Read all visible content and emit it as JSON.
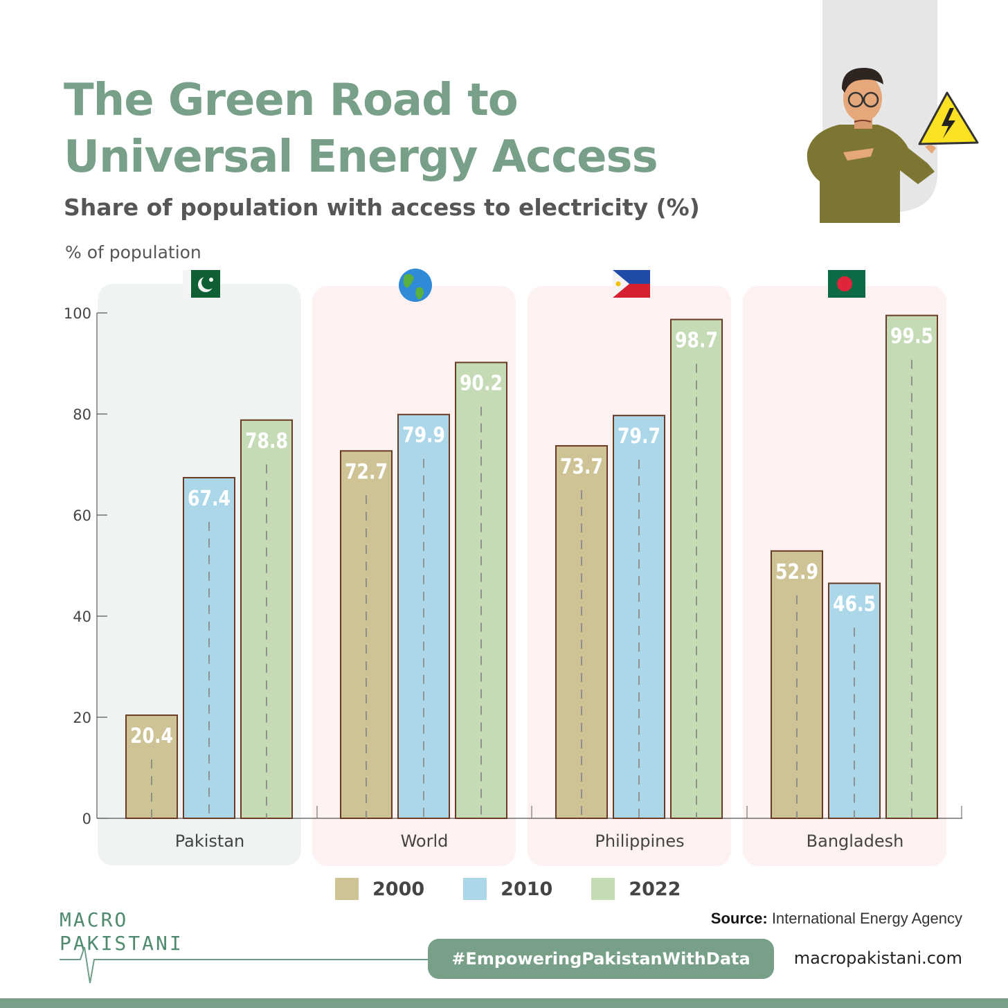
{
  "header": {
    "title_line1": "The Green Road to",
    "title_line2": "Universal Energy Access",
    "subtitle": "Share of population with access to electricity (%)"
  },
  "chart_data": {
    "type": "bar",
    "title": "The Green Road to Universal Energy Access",
    "subtitle": "Share of population with access to electricity (%)",
    "ylabel": "% of population",
    "xlabel": "",
    "ylim": [
      0,
      100
    ],
    "yticks": [
      0,
      20,
      40,
      60,
      80,
      100
    ],
    "categories": [
      "Pakistan",
      "World",
      "Philippines",
      "Bangladesh"
    ],
    "category_icons": [
      "pakistan-flag",
      "globe",
      "philippines-flag",
      "bangladesh-flag"
    ],
    "series": [
      {
        "name": "2000",
        "color": "#cdc394",
        "values": [
          20.4,
          72.7,
          73.7,
          52.9
        ]
      },
      {
        "name": "2010",
        "color": "#acd7e8",
        "values": [
          67.4,
          79.9,
          79.7,
          46.5
        ]
      },
      {
        "name": "2022",
        "color": "#c5dbb5",
        "values": [
          78.8,
          90.2,
          98.7,
          99.5
        ]
      }
    ],
    "legend_position": "bottom",
    "grid": false,
    "highlight": "Pakistan",
    "colors": {
      "highlight_panel": "#eff3f1",
      "panel": "#fdf1f1",
      "bar_outline": "#6b3a22"
    }
  },
  "footer": {
    "logo_line1": "MACRO",
    "logo_line2": "PAKISTANI",
    "source_label": "Source:",
    "source_text": "International Energy Agency",
    "hashtag": "#EmpoweringPakistanWithData",
    "website": "macropakistani.com"
  },
  "colors": {
    "accent": "#78a088",
    "title": "#78a088"
  }
}
